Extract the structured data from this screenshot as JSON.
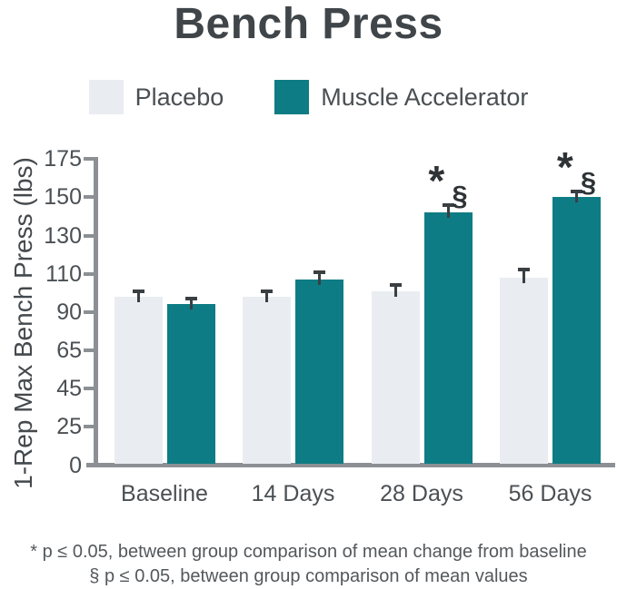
{
  "title": "Bench Press",
  "legend": [
    {
      "label": "Placebo",
      "color": "#E9EDF2"
    },
    {
      "label": "Muscle Accelerator",
      "color": "#0E7C84"
    }
  ],
  "footnotes": [
    "* p ≤ 0.05, between group comparison of mean change from baseline",
    "§ p ≤ 0.05, between group comparison of mean values"
  ],
  "annotations": {
    "star": "*",
    "section": "§"
  },
  "colors": {
    "placebo_bar": "#E9EDF2",
    "accelerator_bar": "#0E7C84",
    "axis_line": "#8C9094",
    "error_bar": "#3A3F42",
    "title_text": "#3F4549",
    "tick_text": "#4B5054"
  },
  "chart_data": {
    "type": "bar",
    "title": "Bench Press",
    "xlabel": "",
    "ylabel": "1-Rep Max Bench Press (lbs)",
    "categories": [
      "Baseline",
      "14 Days",
      "28 Days",
      "56 Days"
    ],
    "y_ticks": [
      0,
      25,
      45,
      65,
      90,
      110,
      130,
      150,
      175
    ],
    "y_axis_scale": "non-linear: tick labels evenly spaced in pixels",
    "ylim": [
      0,
      175
    ],
    "grid": false,
    "legend_position": "top",
    "series": [
      {
        "name": "Placebo",
        "color": "#E9EDF2",
        "values": [
          98,
          98,
          101,
          108
        ],
        "errors": [
          4,
          4,
          4,
          5
        ],
        "sig": [
          false,
          false,
          false,
          false
        ]
      },
      {
        "name": "Muscle Accelerator",
        "color": "#0E7C84",
        "values": [
          94,
          107,
          142,
          150
        ],
        "errors": [
          4,
          5,
          5,
          5
        ],
        "sig": [
          false,
          false,
          true,
          true
        ]
      }
    ],
    "sig_note": "* § shown above Muscle Accelerator bars at 28 Days and 56 Days"
  }
}
